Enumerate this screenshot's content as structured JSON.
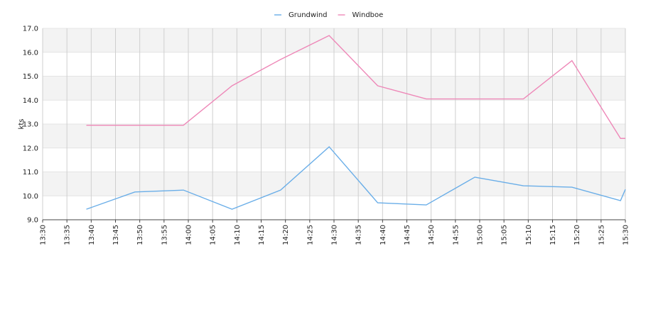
{
  "chart_data": {
    "type": "line",
    "y_label": "kts",
    "x": [
      "13:39",
      "13:49",
      "13:59",
      "14:09",
      "14:19",
      "14:29",
      "14:39",
      "14:49",
      "14:59",
      "15:09",
      "15:19",
      "15:29",
      "15:30"
    ],
    "series": [
      {
        "name": "Grundwind",
        "color": "#6aaee8",
        "values": [
          9.44,
          10.16,
          10.24,
          9.44,
          10.24,
          12.05,
          9.71,
          9.62,
          10.78,
          10.42,
          10.36,
          9.8,
          10.27
        ]
      },
      {
        "name": "Windboe",
        "color": "#ee88b8",
        "values": [
          12.95,
          12.95,
          12.95,
          14.6,
          15.7,
          16.7,
          14.6,
          14.05,
          14.05,
          14.05,
          15.65,
          12.4,
          12.4
        ]
      }
    ],
    "xlim": [
      "13:30",
      "15:30"
    ],
    "xticks": [
      "13:30",
      "13:35",
      "13:40",
      "13:45",
      "13:50",
      "13:55",
      "14:00",
      "14:05",
      "14:10",
      "14:15",
      "14:20",
      "14:25",
      "14:30",
      "14:35",
      "14:40",
      "14:45",
      "14:50",
      "14:55",
      "15:00",
      "15:05",
      "15:10",
      "15:15",
      "15:20",
      "15:25",
      "15:30"
    ],
    "ylim": [
      9,
      17
    ],
    "yticks": [
      {
        "value": 9,
        "label": "9.0"
      },
      {
        "value": 10,
        "label": "10.0"
      },
      {
        "value": 11,
        "label": "11.0"
      },
      {
        "value": 12,
        "label": "12.0"
      },
      {
        "value": 13,
        "label": "13.0"
      },
      {
        "value": 14,
        "label": "14.0"
      },
      {
        "value": 15,
        "label": "15.0"
      },
      {
        "value": 16,
        "label": "16.0"
      },
      {
        "value": 17,
        "label": "17.0"
      }
    ],
    "grid": true,
    "legend": "top"
  }
}
